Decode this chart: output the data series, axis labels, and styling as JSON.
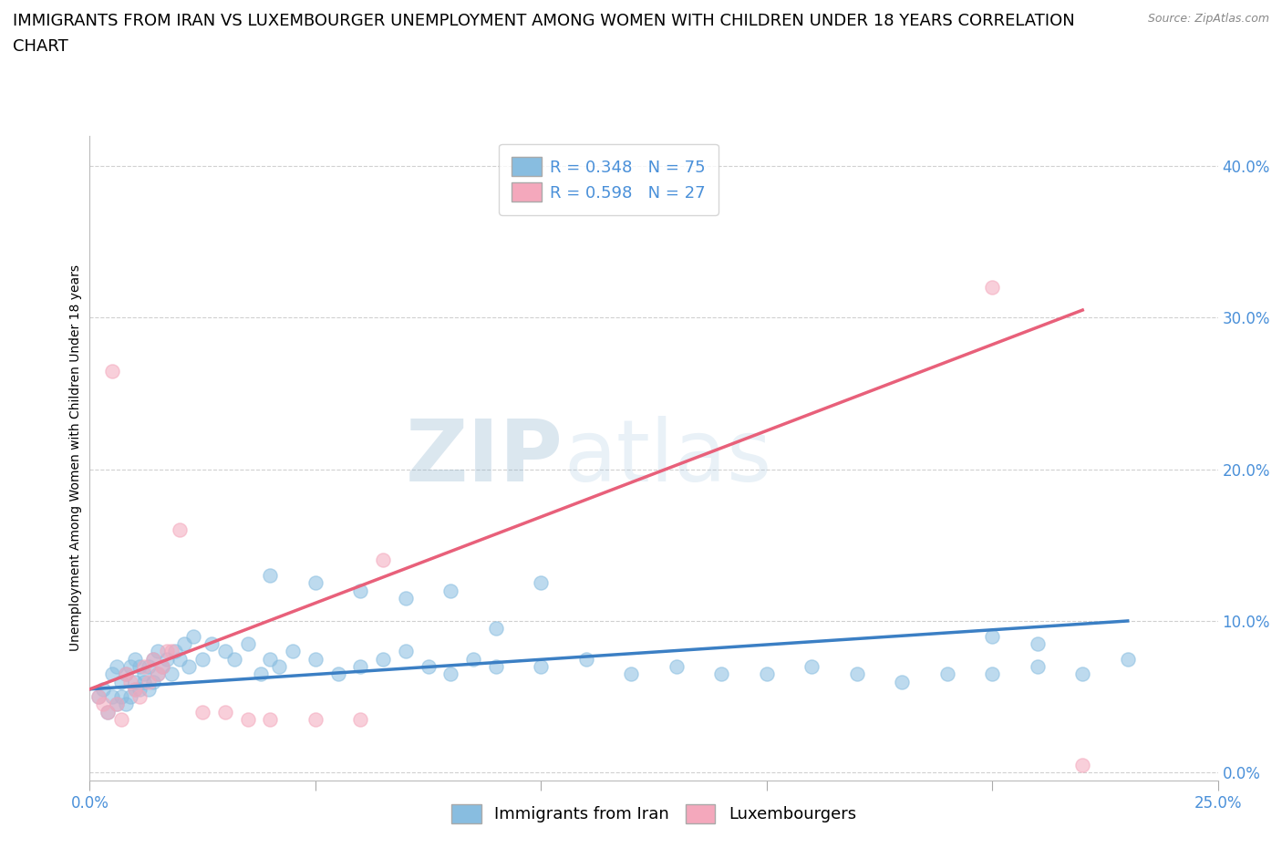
{
  "title_line1": "IMMIGRANTS FROM IRAN VS LUXEMBOURGER UNEMPLOYMENT AMONG WOMEN WITH CHILDREN UNDER 18 YEARS CORRELATION",
  "title_line2": "CHART",
  "source": "Source: ZipAtlas.com",
  "ylabel": "Unemployment Among Women with Children Under 18 years",
  "xlim": [
    0.0,
    0.25
  ],
  "ylim": [
    -0.005,
    0.42
  ],
  "yticks": [
    0.0,
    0.1,
    0.2,
    0.3,
    0.4
  ],
  "xticks": [
    0.0,
    0.05,
    0.1,
    0.15,
    0.2,
    0.25
  ],
  "xtick_labels": [
    "0.0%",
    "",
    "",
    "",
    "",
    "25.0%"
  ],
  "color_blue": "#88bde0",
  "color_pink": "#f4a8bc",
  "color_blue_line": "#3b7fc4",
  "color_pink_line": "#e8607a",
  "watermark_zip": "ZIP",
  "watermark_atlas": "atlas",
  "legend_r1": "R = 0.348",
  "legend_n1": "N = 75",
  "legend_r2": "R = 0.598",
  "legend_n2": "N = 27",
  "blue_scatter_x": [
    0.002,
    0.003,
    0.004,
    0.005,
    0.005,
    0.006,
    0.006,
    0.007,
    0.007,
    0.008,
    0.008,
    0.009,
    0.009,
    0.01,
    0.01,
    0.01,
    0.011,
    0.011,
    0.012,
    0.012,
    0.013,
    0.013,
    0.014,
    0.014,
    0.015,
    0.015,
    0.016,
    0.017,
    0.018,
    0.019,
    0.02,
    0.021,
    0.022,
    0.023,
    0.025,
    0.027,
    0.03,
    0.032,
    0.035,
    0.038,
    0.04,
    0.042,
    0.045,
    0.05,
    0.055,
    0.06,
    0.065,
    0.07,
    0.075,
    0.08,
    0.085,
    0.09,
    0.1,
    0.11,
    0.12,
    0.13,
    0.14,
    0.15,
    0.16,
    0.17,
    0.18,
    0.19,
    0.2,
    0.21,
    0.22,
    0.23,
    0.04,
    0.05,
    0.06,
    0.07,
    0.08,
    0.09,
    0.1,
    0.2,
    0.21
  ],
  "blue_scatter_y": [
    0.05,
    0.055,
    0.04,
    0.05,
    0.065,
    0.045,
    0.07,
    0.05,
    0.06,
    0.045,
    0.065,
    0.05,
    0.07,
    0.055,
    0.06,
    0.075,
    0.055,
    0.07,
    0.06,
    0.065,
    0.07,
    0.055,
    0.075,
    0.06,
    0.065,
    0.08,
    0.07,
    0.075,
    0.065,
    0.08,
    0.075,
    0.085,
    0.07,
    0.09,
    0.075,
    0.085,
    0.08,
    0.075,
    0.085,
    0.065,
    0.075,
    0.07,
    0.08,
    0.075,
    0.065,
    0.07,
    0.075,
    0.08,
    0.07,
    0.065,
    0.075,
    0.07,
    0.07,
    0.075,
    0.065,
    0.07,
    0.065,
    0.065,
    0.07,
    0.065,
    0.06,
    0.065,
    0.065,
    0.07,
    0.065,
    0.075,
    0.13,
    0.125,
    0.12,
    0.115,
    0.12,
    0.095,
    0.125,
    0.09,
    0.085
  ],
  "pink_scatter_x": [
    0.002,
    0.003,
    0.004,
    0.005,
    0.006,
    0.007,
    0.008,
    0.009,
    0.01,
    0.011,
    0.012,
    0.013,
    0.014,
    0.015,
    0.016,
    0.017,
    0.018,
    0.02,
    0.025,
    0.03,
    0.035,
    0.04,
    0.05,
    0.06,
    0.065,
    0.2,
    0.22
  ],
  "pink_scatter_y": [
    0.05,
    0.045,
    0.04,
    0.265,
    0.045,
    0.035,
    0.065,
    0.06,
    0.055,
    0.05,
    0.07,
    0.06,
    0.075,
    0.065,
    0.07,
    0.08,
    0.08,
    0.16,
    0.04,
    0.04,
    0.035,
    0.035,
    0.035,
    0.035,
    0.14,
    0.32,
    0.005
  ],
  "blue_trend_x": [
    0.0,
    0.23
  ],
  "blue_trend_y": [
    0.055,
    0.1
  ],
  "pink_trend_x": [
    0.0,
    0.22
  ],
  "pink_trend_y": [
    0.055,
    0.305
  ],
  "title_fontsize": 13,
  "axis_label_fontsize": 10,
  "tick_fontsize": 12,
  "tick_color": "#4a90d9",
  "grid_color": "#d0d0d0",
  "background_color": "#ffffff"
}
